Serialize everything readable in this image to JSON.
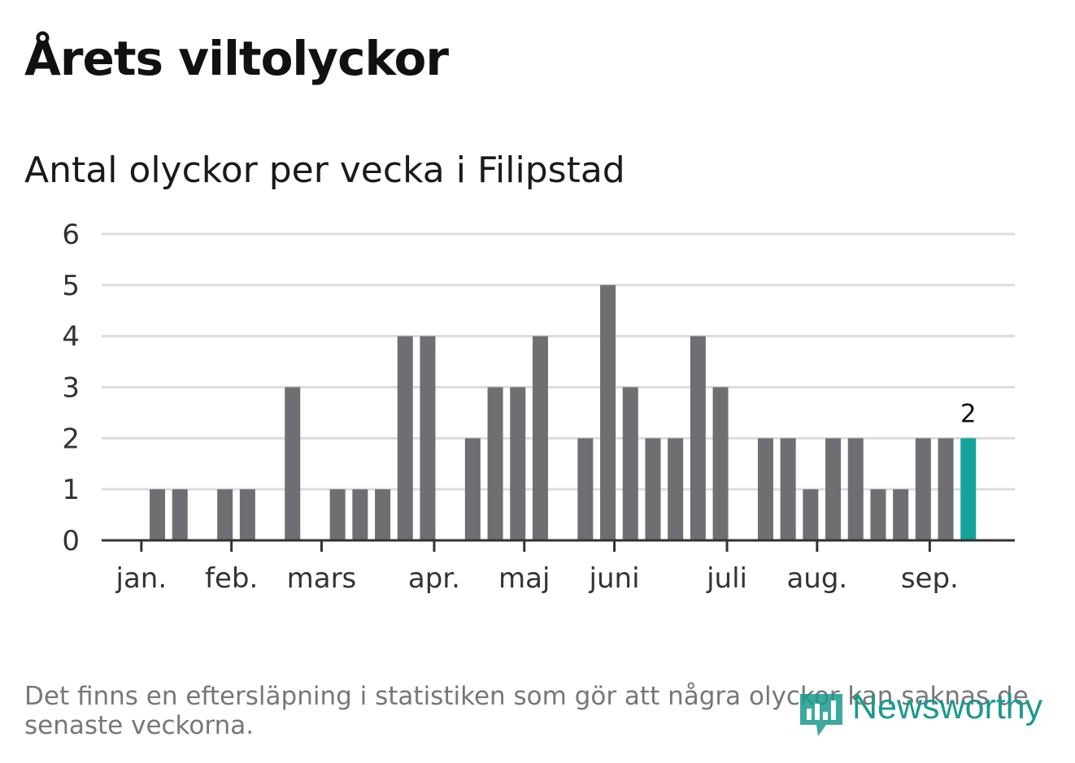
{
  "header": {
    "title": "Årets viltolyckor",
    "subtitle": "Antal olyckor per vecka i Filipstad"
  },
  "footer": {
    "note": "Det finns en eftersläpning i statistiken som gör att några olyckor kan saknas de senaste veckorna.",
    "brand": "Newsworthy"
  },
  "colors": {
    "bar": "#6f6e73",
    "highlight": "#14a39a",
    "gridline": "#dcdcdc",
    "axis": "#333333",
    "brand": "#1a9a8e"
  },
  "chart_data": {
    "type": "bar",
    "title": "Antal olyckor per vecka i Filipstad",
    "ylim": [
      0,
      6
    ],
    "yticks": [
      0,
      1,
      2,
      3,
      4,
      5,
      6
    ],
    "grid": true,
    "x_month_labels": [
      "jan.",
      "feb.",
      "mars",
      "apr.",
      "maj",
      "juni",
      "juli",
      "aug.",
      "sep."
    ],
    "values": [
      0,
      1,
      1,
      0,
      1,
      1,
      0,
      3,
      0,
      1,
      1,
      1,
      4,
      4,
      0,
      2,
      3,
      3,
      4,
      0,
      2,
      5,
      3,
      2,
      2,
      4,
      3,
      0,
      2,
      2,
      1,
      2,
      2,
      1,
      1,
      2,
      2,
      2
    ],
    "highlight_last": true,
    "last_value_label": "2"
  }
}
